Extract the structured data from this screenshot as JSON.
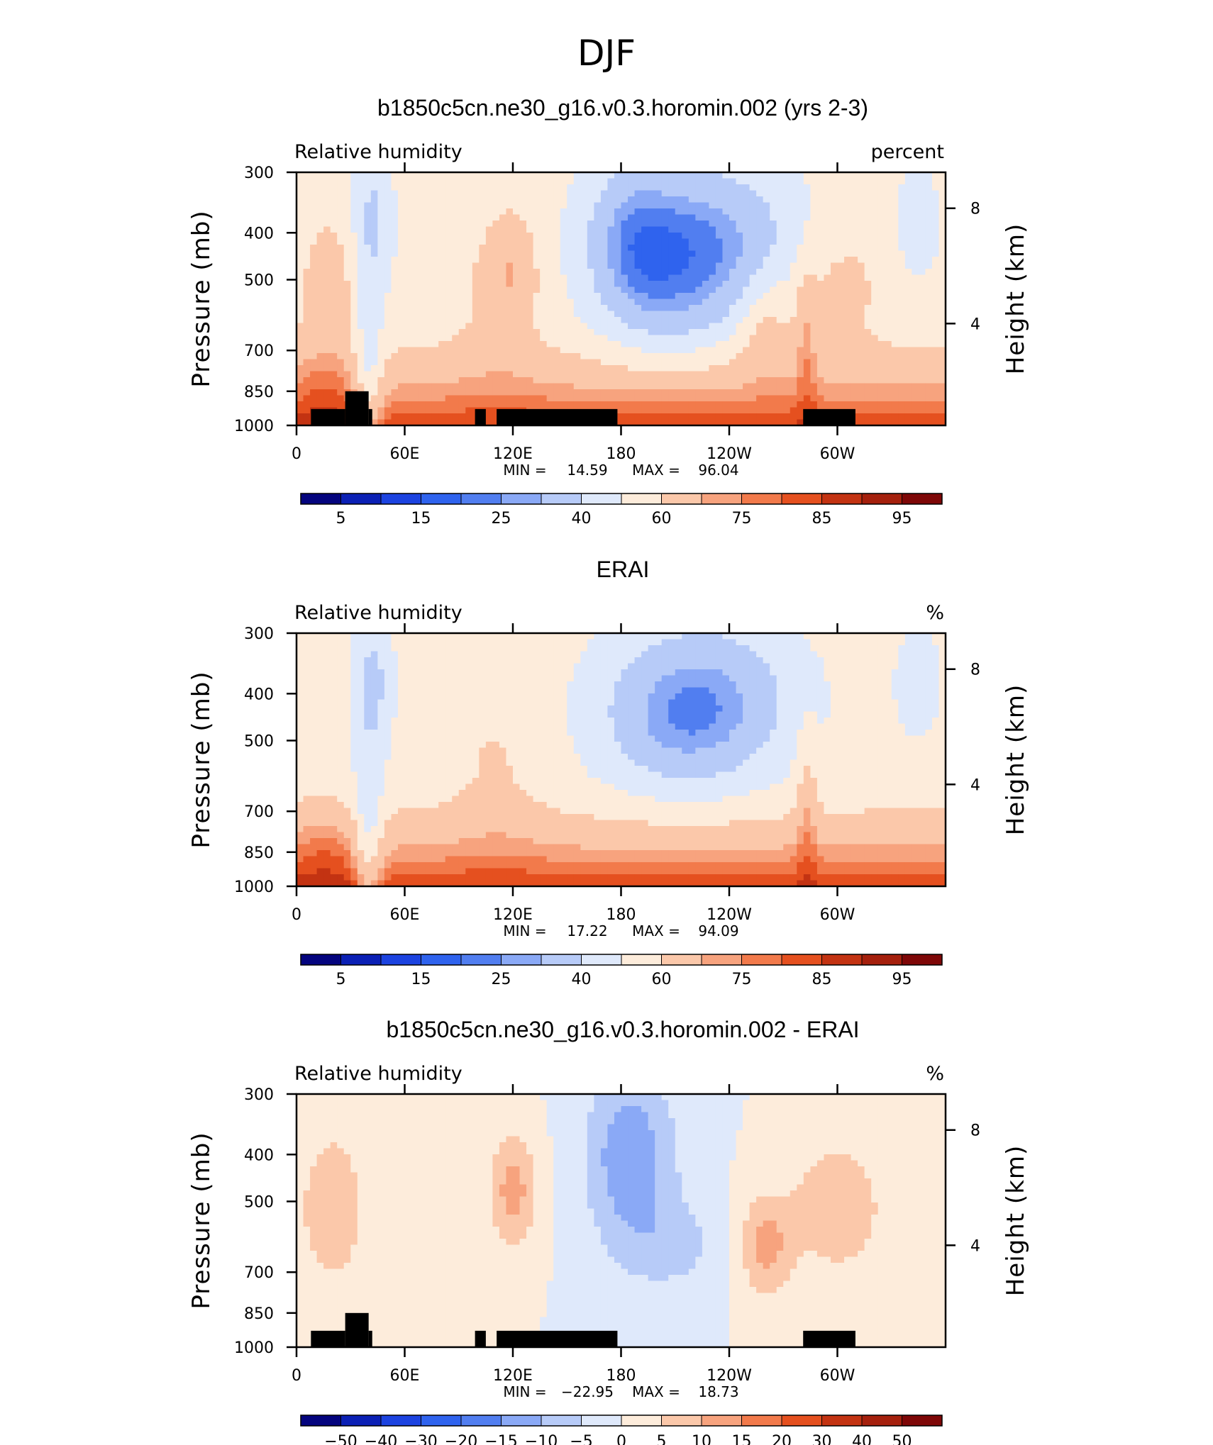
{
  "figure_title": "DJF",
  "colors": {
    "palette_absolute": [
      "#04047e",
      "#0b20b5",
      "#1c43e0",
      "#2f63ee",
      "#517ef0",
      "#8aa9f6",
      "#b7cbf8",
      "#dfe9fb",
      "#fdecdb",
      "#fbc8aa",
      "#f7a37e",
      "#f27a4b",
      "#e5501f",
      "#c33312",
      "#a5200d",
      "#7e0707"
    ],
    "palette_difference": [
      "#04047e",
      "#0b20b5",
      "#1c43e0",
      "#2f63ee",
      "#517ef0",
      "#8aa9f6",
      "#b7cbf8",
      "#dfe9fb",
      "#fdecdb",
      "#fbc8aa",
      "#f7a37e",
      "#f27a4b",
      "#e5501f",
      "#c33312",
      "#a5200d",
      "#7e0707"
    ],
    "land_mask": "#000000"
  },
  "chart_data": [
    {
      "type": "heatmap",
      "title": "b1850c5cn.ne30_g16.v0.3.horomin.002 (yrs 2-3)",
      "variable": "Relative humidity",
      "units": "percent",
      "ylabel": "Pressure (mb)",
      "ylabel_right": "Height (km)",
      "yticks": [
        "300",
        "400",
        "500",
        "700",
        "850",
        "1000"
      ],
      "yticks_right": [
        "8",
        "4"
      ],
      "xticks": [
        "0",
        "60E",
        "120E",
        "180",
        "120W",
        "60W"
      ],
      "xlim": [
        0,
        360
      ],
      "ylim": [
        1000,
        300
      ],
      "min_label": "MIN =",
      "min": "14.59",
      "max_label": "MAX =",
      "max": "96.04",
      "colorbar_levels": [
        "5",
        "15",
        "25",
        "40",
        "60",
        "75",
        "85",
        "95"
      ]
    },
    {
      "type": "heatmap",
      "title": "ERAI",
      "variable": "Relative humidity",
      "units": "%",
      "ylabel": "Pressure (mb)",
      "ylabel_right": "Height (km)",
      "yticks": [
        "300",
        "400",
        "500",
        "700",
        "850",
        "1000"
      ],
      "yticks_right": [
        "8",
        "4"
      ],
      "xticks": [
        "0",
        "60E",
        "120E",
        "180",
        "120W",
        "60W"
      ],
      "xlim": [
        0,
        360
      ],
      "ylim": [
        1000,
        300
      ],
      "min_label": "MIN =",
      "min": "17.22",
      "max_label": "MAX =",
      "max": "94.09",
      "colorbar_levels": [
        "5",
        "15",
        "25",
        "40",
        "60",
        "75",
        "85",
        "95"
      ]
    },
    {
      "type": "heatmap",
      "title": "b1850c5cn.ne30_g16.v0.3.horomin.002 - ERAI",
      "variable": "Relative humidity",
      "units": "%",
      "ylabel": "Pressure (mb)",
      "ylabel_right": "Height (km)",
      "yticks": [
        "300",
        "400",
        "500",
        "700",
        "850",
        "1000"
      ],
      "yticks_right": [
        "8",
        "4"
      ],
      "xticks": [
        "0",
        "60E",
        "120E",
        "180",
        "120W",
        "60W"
      ],
      "xlim": [
        0,
        360
      ],
      "ylim": [
        1000,
        300
      ],
      "min_label": "MIN =",
      "min": "−22.95",
      "max_label": "MAX =",
      "max": "18.73",
      "colorbar_levels": [
        "−50",
        "−40",
        "−30",
        "−20",
        "−15",
        "−10",
        "−5",
        "0",
        "5",
        "10",
        "15",
        "20",
        "30",
        "40",
        "50"
      ]
    }
  ]
}
